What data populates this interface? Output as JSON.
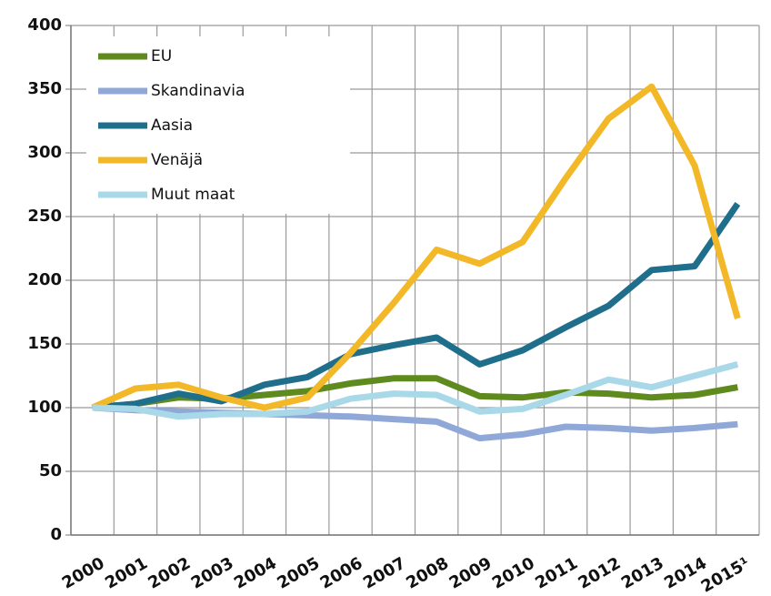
{
  "chart_data": {
    "type": "line",
    "categories": [
      "2000",
      "2001",
      "2002",
      "2003",
      "2004",
      "2005",
      "2006",
      "2007",
      "2008",
      "2009",
      "2010",
      "2011",
      "2012",
      "2013",
      "2014",
      "2015¹"
    ],
    "series": [
      {
        "name": "EU",
        "color": "#5f8a1e",
        "values": [
          100,
          103,
          108,
          107,
          110,
          113,
          119,
          123,
          123,
          109,
          108,
          112,
          111,
          108,
          110,
          116
        ]
      },
      {
        "name": "Skandinavia",
        "color": "#8fa8d8",
        "values": [
          100,
          98,
          97,
          96,
          95,
          94,
          93,
          91,
          89,
          76,
          79,
          85,
          84,
          82,
          84,
          87
        ]
      },
      {
        "name": "Aasia",
        "color": "#1f6e8c",
        "values": [
          100,
          103,
          111,
          105,
          118,
          124,
          142,
          149,
          155,
          134,
          145,
          163,
          180,
          208,
          211,
          260
        ]
      },
      {
        "name": "Venäjä",
        "color": "#f2b827",
        "values": [
          100,
          115,
          118,
          108,
          100,
          108,
          143,
          182,
          224,
          213,
          230,
          280,
          327,
          352,
          290,
          170
        ]
      },
      {
        "name": "Muut maat",
        "color": "#a9d8e8",
        "values": [
          100,
          99,
          93,
          95,
          95,
          97,
          107,
          111,
          110,
          97,
          99,
          110,
          122,
          116,
          125,
          134
        ]
      }
    ],
    "ylim": [
      0,
      400
    ],
    "yticks": [
      0,
      50,
      100,
      150,
      200,
      250,
      300,
      350,
      400
    ],
    "grid": true,
    "legend": "upper-left"
  }
}
